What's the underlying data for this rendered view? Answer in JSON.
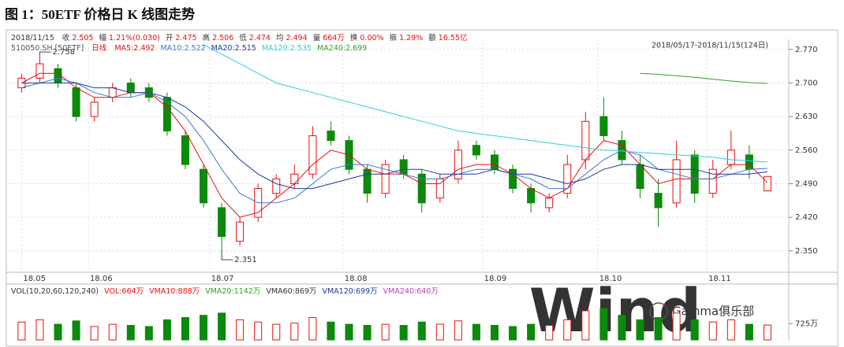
{
  "chart_data": {
    "type": "candlestick",
    "title": "图 1：50ETF 价格日 K 线图走势",
    "date": "2018/11/15",
    "quote": [
      {
        "label": "收",
        "value": "2.505"
      },
      {
        "label": "幅",
        "value": "1.21%(0.030)"
      },
      {
        "label": "开",
        "value": "2.475"
      },
      {
        "label": "高",
        "value": "2.506"
      },
      {
        "label": "低",
        "value": "2.474"
      },
      {
        "label": "均",
        "value": "2.494"
      },
      {
        "label": "量",
        "value": "664万"
      },
      {
        "label": "换",
        "value": "0.00%"
      },
      {
        "label": "振",
        "value": "1.29%"
      },
      {
        "label": "额",
        "value": "16.55亿"
      }
    ],
    "symbol": "510050.SH [50ETF]",
    "period": "日线",
    "range_label": "2018/05/17-2018/11/15(124日)",
    "x": [
      0,
      3,
      6,
      9,
      12,
      15,
      18,
      21,
      24,
      27,
      30,
      33,
      36,
      39,
      42,
      45,
      48,
      51,
      54,
      57,
      60,
      63,
      66,
      69,
      72,
      75,
      78,
      81,
      84,
      87,
      90,
      93,
      96,
      99,
      102,
      105,
      108,
      111,
      114,
      117,
      120,
      123
    ],
    "xlim": [
      -2,
      126
    ],
    "xticks": [
      {
        "value": 0,
        "label": "18.05"
      },
      {
        "value": 11,
        "label": "18.06"
      },
      {
        "value": 31,
        "label": "18.07"
      },
      {
        "value": 53,
        "label": "18.08"
      },
      {
        "value": 76,
        "label": "18.09"
      },
      {
        "value": 95,
        "label": "18.10"
      },
      {
        "value": 113,
        "label": "18.11"
      }
    ],
    "ylim": [
      2.307,
      2.791
    ],
    "yticks": [
      {
        "value": 2.77,
        "label": "2.770"
      },
      {
        "value": 2.7,
        "label": "2.700"
      },
      {
        "value": 2.63,
        "label": "2.630"
      },
      {
        "value": 2.56,
        "label": "2.560"
      },
      {
        "value": 2.49,
        "label": "2.490"
      },
      {
        "value": 2.42,
        "label": "2.420"
      },
      {
        "value": 2.35,
        "label": "2.350"
      }
    ],
    "grid": true,
    "up_color": "#e8110f",
    "down_color": "#0b8a0b",
    "open": [
      2.69,
      2.71,
      2.73,
      2.69,
      2.63,
      2.67,
      2.7,
      2.69,
      2.67,
      2.59,
      2.52,
      2.44,
      2.37,
      2.42,
      2.47,
      2.49,
      2.51,
      2.6,
      2.58,
      2.52,
      2.47,
      2.54,
      2.51,
      2.46,
      2.5,
      2.57,
      2.55,
      2.52,
      2.48,
      2.44,
      2.47,
      2.54,
      2.63,
      2.58,
      2.53,
      2.47,
      2.45,
      2.55,
      2.47,
      2.53,
      2.55,
      2.475
    ],
    "high": [
      2.72,
      2.758,
      2.74,
      2.7,
      2.67,
      2.7,
      2.71,
      2.7,
      2.68,
      2.6,
      2.53,
      2.45,
      2.42,
      2.49,
      2.51,
      2.53,
      2.61,
      2.62,
      2.59,
      2.53,
      2.54,
      2.55,
      2.52,
      2.51,
      2.58,
      2.58,
      2.56,
      2.53,
      2.49,
      2.47,
      2.55,
      2.64,
      2.67,
      2.6,
      2.55,
      2.5,
      2.58,
      2.56,
      2.54,
      2.6,
      2.57,
      2.506
    ],
    "low": [
      2.68,
      2.7,
      2.69,
      2.62,
      2.62,
      2.66,
      2.67,
      2.66,
      2.59,
      2.52,
      2.44,
      2.351,
      2.36,
      2.41,
      2.46,
      2.48,
      2.5,
      2.57,
      2.51,
      2.45,
      2.46,
      2.5,
      2.43,
      2.45,
      2.49,
      2.54,
      2.51,
      2.47,
      2.43,
      2.43,
      2.46,
      2.52,
      2.58,
      2.53,
      2.46,
      2.4,
      2.44,
      2.45,
      2.46,
      2.52,
      2.5,
      2.474
    ],
    "close": [
      2.71,
      2.74,
      2.7,
      2.63,
      2.66,
      2.69,
      2.68,
      2.67,
      2.6,
      2.53,
      2.45,
      2.38,
      2.41,
      2.48,
      2.5,
      2.51,
      2.59,
      2.58,
      2.52,
      2.47,
      2.53,
      2.51,
      2.45,
      2.5,
      2.56,
      2.55,
      2.52,
      2.48,
      2.45,
      2.46,
      2.53,
      2.62,
      2.59,
      2.54,
      2.48,
      2.44,
      2.54,
      2.47,
      2.52,
      2.56,
      2.52,
      2.505
    ],
    "series": [
      {
        "name": "MA5:2.492",
        "color": "#e8110f",
        "values": [
          2.7,
          2.72,
          2.72,
          2.69,
          2.67,
          2.67,
          2.68,
          2.68,
          2.65,
          2.6,
          2.53,
          2.46,
          2.42,
          2.43,
          2.46,
          2.49,
          2.53,
          2.56,
          2.55,
          2.52,
          2.51,
          2.51,
          2.49,
          2.49,
          2.52,
          2.53,
          2.53,
          2.51,
          2.48,
          2.46,
          2.48,
          2.54,
          2.58,
          2.57,
          2.53,
          2.49,
          2.5,
          2.5,
          2.5,
          2.53,
          2.53,
          2.492
        ]
      },
      {
        "name": "MA10:2.522",
        "color": "#3a78d8",
        "values": [
          2.69,
          2.7,
          2.71,
          2.7,
          2.68,
          2.67,
          2.67,
          2.68,
          2.66,
          2.63,
          2.58,
          2.52,
          2.47,
          2.45,
          2.45,
          2.46,
          2.49,
          2.52,
          2.53,
          2.53,
          2.52,
          2.51,
          2.5,
          2.5,
          2.51,
          2.52,
          2.52,
          2.51,
          2.5,
          2.48,
          2.48,
          2.51,
          2.54,
          2.56,
          2.55,
          2.52,
          2.51,
          2.5,
          2.5,
          2.51,
          2.52,
          2.522
        ]
      },
      {
        "name": "MA20:2.515",
        "color": "#1c3a9e",
        "values": [
          2.7,
          2.7,
          2.7,
          2.7,
          2.69,
          2.69,
          2.68,
          2.68,
          2.67,
          2.65,
          2.62,
          2.58,
          2.54,
          2.51,
          2.49,
          2.48,
          2.48,
          2.49,
          2.5,
          2.51,
          2.51,
          2.52,
          2.52,
          2.51,
          2.51,
          2.51,
          2.52,
          2.51,
          2.51,
          2.5,
          2.49,
          2.5,
          2.52,
          2.53,
          2.53,
          2.52,
          2.52,
          2.52,
          2.51,
          2.51,
          2.51,
          2.515
        ]
      },
      {
        "name": "MA120:2.535",
        "color": "#2fcfd6",
        "values": [
          null,
          null,
          null,
          null,
          null,
          null,
          null,
          null,
          null,
          null,
          2.78,
          2.76,
          2.74,
          2.72,
          2.7,
          2.69,
          2.68,
          2.67,
          2.66,
          2.65,
          2.64,
          2.63,
          2.62,
          2.61,
          2.6,
          2.595,
          2.59,
          2.585,
          2.58,
          2.575,
          2.57,
          2.565,
          2.56,
          2.558,
          2.555,
          2.553,
          2.55,
          2.548,
          2.545,
          2.54,
          2.538,
          2.535
        ]
      },
      {
        "name": "MA240:2.699",
        "color": "#33a02c",
        "values": [
          null,
          null,
          null,
          null,
          null,
          null,
          null,
          null,
          null,
          null,
          null,
          null,
          null,
          null,
          null,
          null,
          null,
          null,
          null,
          null,
          null,
          null,
          null,
          null,
          null,
          null,
          null,
          null,
          null,
          null,
          null,
          null,
          null,
          null,
          2.72,
          2.718,
          2.715,
          2.712,
          2.708,
          2.704,
          2.701,
          2.699
        ]
      }
    ],
    "annotations": [
      {
        "label": "2.758",
        "x": 3,
        "y": 2.758
      },
      {
        "label": "2.351",
        "x": 33,
        "y": 2.351
      }
    ],
    "volume": {
      "legend": [
        {
          "label": "VOL(10,20,60,120,240)",
          "color": "#333333"
        },
        {
          "label": "VOL:664万",
          "color": "#e8110f"
        },
        {
          "label": "VMA10:888万",
          "color": "#e8110f"
        },
        {
          "label": "VMA20:1142万",
          "color": "#33a02c"
        },
        {
          "label": "VMA60:869万",
          "color": "#333333"
        },
        {
          "label": "VMA120:699万",
          "color": "#1c3a9e"
        },
        {
          "label": "VMA240:640万",
          "color": "#c040c0"
        }
      ],
      "values": [
        800,
        900,
        700,
        850,
        600,
        700,
        650,
        600,
        900,
        1000,
        1100,
        1200,
        900,
        800,
        700,
        750,
        1000,
        800,
        700,
        650,
        700,
        650,
        800,
        700,
        850,
        700,
        650,
        600,
        700,
        650,
        900,
        1300,
        1400,
        1100,
        900,
        1000,
        1200,
        900,
        800,
        900,
        700,
        664
      ],
      "ylim": [
        0,
        1970
      ],
      "yticks": [
        {
          "value": 725,
          "label": "725万"
        }
      ]
    },
    "watermark": "Wind",
    "brand": "Gamma俱乐部"
  }
}
